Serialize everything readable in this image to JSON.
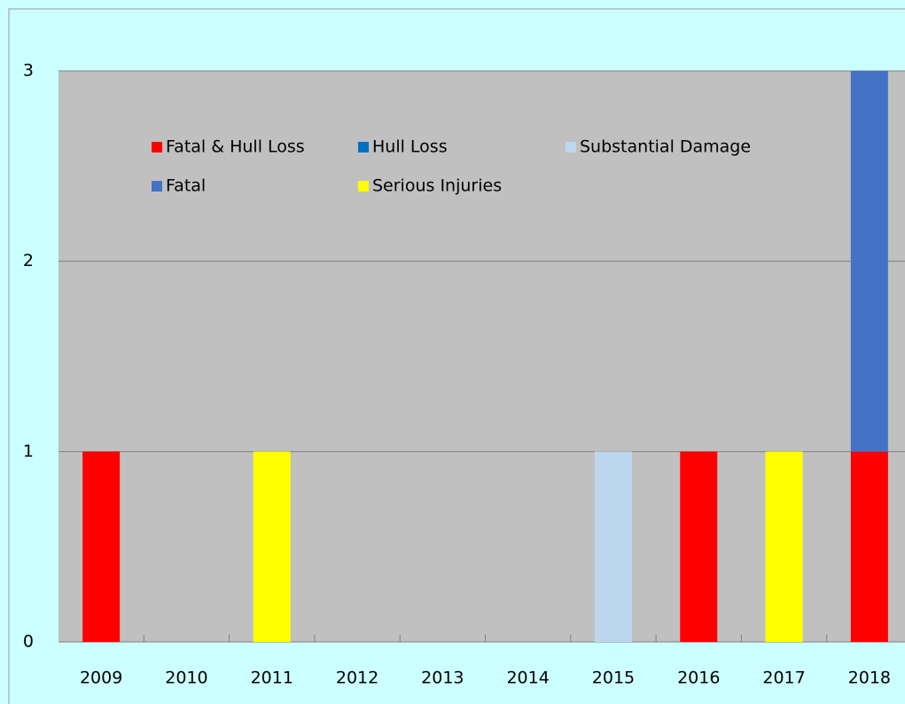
{
  "chart_data": {
    "type": "bar",
    "stacked": true,
    "categories": [
      "2009",
      "2010",
      "2011",
      "2012",
      "2013",
      "2014",
      "2015",
      "2016",
      "2017",
      "2018"
    ],
    "series": [
      {
        "name": "Fatal & Hull Loss",
        "color": "#ff0000",
        "values": [
          1,
          0,
          0,
          0,
          0,
          0,
          0,
          1,
          0,
          1
        ]
      },
      {
        "name": "Hull Loss",
        "color": "#0070c0",
        "values": [
          0,
          0,
          0,
          0,
          0,
          0,
          0,
          0,
          0,
          0
        ]
      },
      {
        "name": "Substantial Damage",
        "color": "#bdd7ee",
        "values": [
          0,
          0,
          0,
          0,
          0,
          0,
          1,
          0,
          0,
          0
        ]
      },
      {
        "name": "Fatal",
        "color": "#4472c4",
        "values": [
          0,
          0,
          0,
          0,
          0,
          0,
          0,
          0,
          0,
          2
        ]
      },
      {
        "name": "Serious Injuries",
        "color": "#ffff00",
        "values": [
          0,
          0,
          1,
          0,
          0,
          0,
          0,
          0,
          1,
          0
        ]
      }
    ],
    "ylim": [
      0,
      3
    ],
    "yticks": [
      0,
      1,
      2,
      3
    ],
    "grid": true,
    "legend": "top-left"
  }
}
